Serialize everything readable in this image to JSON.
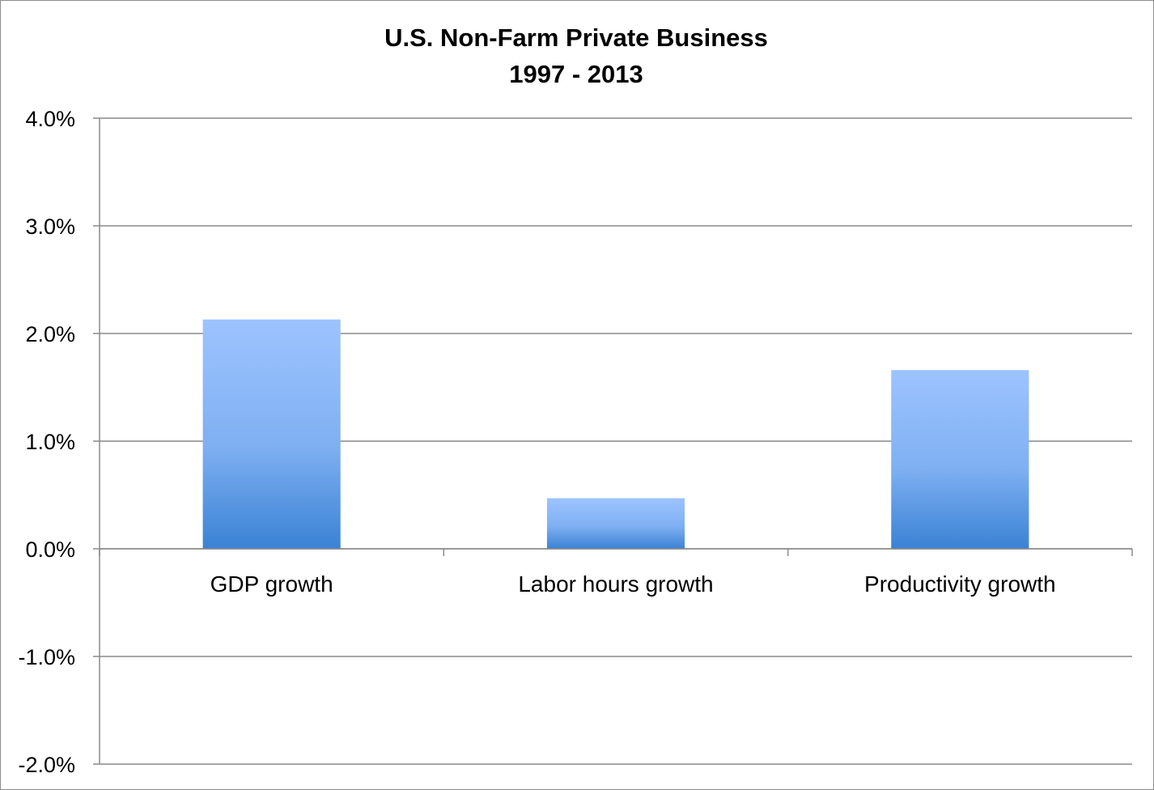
{
  "chart_data": {
    "type": "bar",
    "title_lines": [
      "U.S. Non-Farm Private Business",
      "1997 - 2013"
    ],
    "categories": [
      "GDP growth",
      "Labor hours growth",
      "Productivity growth"
    ],
    "values": [
      0.0213,
      0.0047,
      0.0166
    ],
    "ylim": [
      -0.02,
      0.04
    ],
    "y_ticks": [
      0.04,
      0.03,
      0.02,
      0.01,
      0.0,
      -0.01,
      -0.02
    ],
    "y_tick_labels": [
      "4.0%",
      "3.0%",
      "2.0%",
      "1.0%",
      "0.0%",
      "-1.0%",
      "-2.0%"
    ],
    "xlabel": "",
    "ylabel": "",
    "grid": true,
    "legend": "none",
    "bar_color_top": "#9dc3ff",
    "bar_color_bottom": "#3a82d4"
  }
}
